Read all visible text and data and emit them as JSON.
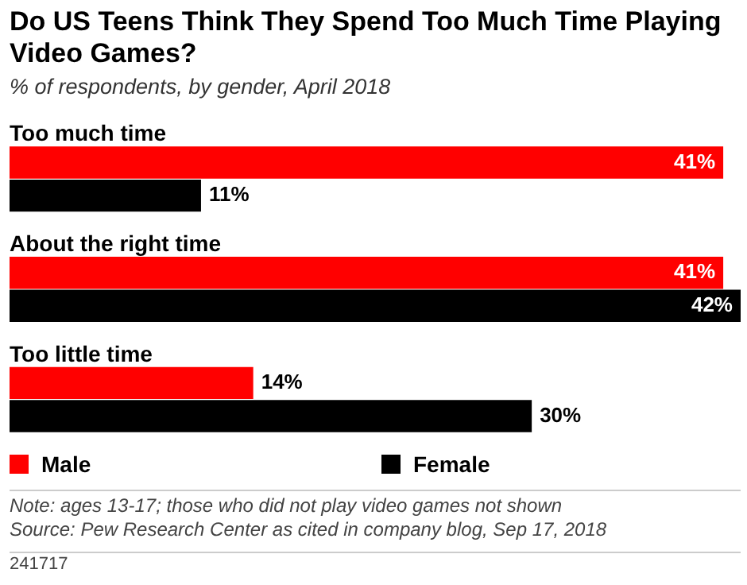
{
  "chart_data": {
    "type": "bar",
    "orientation": "horizontal",
    "title": "Do US Teens Think They Spend Too Much Time Playing Video Games?",
    "subtitle": "% of respondents, by gender, April 2018",
    "categories": [
      "Too much time",
      "About the right time",
      "Too little time"
    ],
    "series": [
      {
        "name": "Male",
        "color": "#ff0000",
        "values": [
          41,
          41,
          14
        ],
        "value_labels": [
          "41%",
          "41%",
          "14%"
        ]
      },
      {
        "name": "Female",
        "color": "#000000",
        "values": [
          11,
          42,
          30
        ],
        "value_labels": [
          "11%",
          "42%",
          "30%"
        ]
      }
    ],
    "legend": "bottom",
    "tick_labels": false,
    "annotations": [
      "Note: ages 13-17; those who did not play video games not shown",
      "Source: Pew Research Center as cited in company blog, Sep 17, 2018",
      "241717"
    ]
  }
}
